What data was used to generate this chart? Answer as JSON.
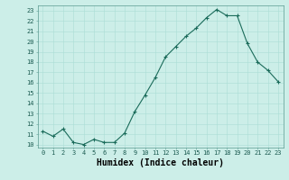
{
  "x": [
    0,
    1,
    2,
    3,
    4,
    5,
    6,
    7,
    8,
    9,
    10,
    11,
    12,
    13,
    14,
    15,
    16,
    17,
    18,
    19,
    20,
    21,
    22,
    23
  ],
  "y": [
    11.3,
    10.8,
    11.5,
    10.2,
    10.0,
    10.5,
    10.2,
    10.2,
    11.1,
    13.2,
    14.8,
    16.5,
    18.5,
    19.5,
    20.5,
    21.3,
    22.3,
    23.1,
    22.5,
    22.5,
    19.8,
    18.0,
    17.2,
    16.1
  ],
  "line_color": "#1a6b5a",
  "marker": "+",
  "marker_size": 3,
  "marker_lw": 0.8,
  "line_width": 0.8,
  "bg_color": "#cceee8",
  "grid_color": "#aaddd5",
  "xlabel": "Humidex (Indice chaleur)",
  "xlabel_fontsize": 7,
  "tick_fontsize": 5,
  "ylabel_ticks": [
    10,
    11,
    12,
    13,
    14,
    15,
    16,
    17,
    18,
    19,
    20,
    21,
    22,
    23
  ],
  "xtick_labels": [
    "0",
    "1",
    "2",
    "3",
    "4",
    "5",
    "6",
    "7",
    "8",
    "9",
    "10",
    "11",
    "12",
    "13",
    "14",
    "15",
    "16",
    "17",
    "18",
    "19",
    "20",
    "21",
    "22",
    "23"
  ],
  "ylim": [
    9.7,
    23.5
  ],
  "xlim": [
    -0.5,
    23.5
  ]
}
